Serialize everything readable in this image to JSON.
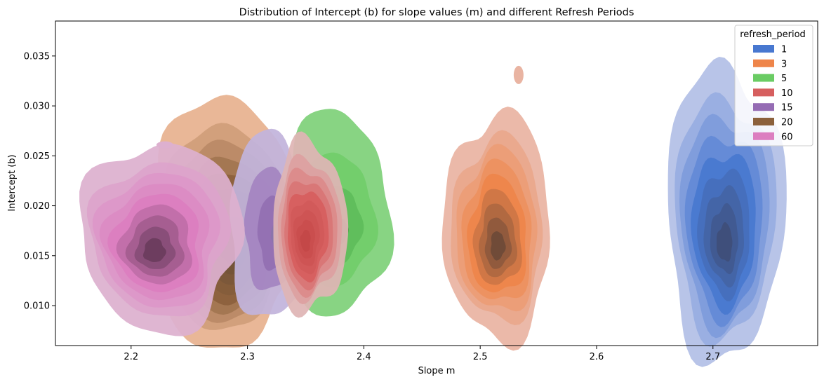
{
  "chart_data": {
    "type": "kde-2d-filled",
    "title": "Distribution of Intercept (b) for slope values (m) and different Refresh Periods",
    "xlabel": "Slope m",
    "ylabel": "Intercept (b)",
    "xlim": [
      2.135,
      2.79
    ],
    "ylim": [
      0.006,
      0.0385
    ],
    "xticks": [
      2.2,
      2.3,
      2.4,
      2.5,
      2.6,
      2.7
    ],
    "xtick_labels": [
      "2.2",
      "2.3",
      "2.4",
      "2.5",
      "2.6",
      "2.7"
    ],
    "yticks": [
      0.01,
      0.015,
      0.02,
      0.025,
      0.03,
      0.035
    ],
    "ytick_labels": [
      "0.010",
      "0.015",
      "0.020",
      "0.025",
      "0.030",
      "0.035"
    ],
    "legend": {
      "title": "refresh_period",
      "position": "top-right",
      "entries": [
        "1",
        "3",
        "5",
        "10",
        "15",
        "20",
        "60"
      ]
    },
    "series": [
      {
        "name": "1",
        "color": "#4878d0",
        "light": "#b3bfe6",
        "dark": "#3f4f7a",
        "peak": [
          2.71,
          0.0163
        ],
        "spread": [
          0.028,
          0.0036
        ],
        "levels": 9,
        "extent": {
          "x": [
            2.655,
            2.765
          ],
          "y": [
            0.01,
            0.0335
          ]
        }
      },
      {
        "name": "3",
        "color": "#ee854a",
        "light": "#e9b4a2",
        "dark": "#6e4a38",
        "peak": [
          2.515,
          0.016
        ],
        "spread": [
          0.03,
          0.0042
        ],
        "levels": 9,
        "extent": {
          "x": [
            2.465,
            2.565
          ],
          "y": [
            0.0093,
            0.0292
          ]
        }
      },
      {
        "name": "5",
        "color": "#6acc64",
        "light": "#7fd17a",
        "dark": "#4a9b45",
        "peak": [
          2.38,
          0.0175
        ],
        "spread": [
          0.03,
          0.004
        ],
        "levels": 4,
        "extent": {
          "x": [
            2.33,
            2.415
          ],
          "y": [
            0.0115,
            0.0295
          ]
        }
      },
      {
        "name": "10",
        "color": "#d65f5f",
        "light": "#dfb5b5",
        "dark": "#c44848",
        "peak": [
          2.35,
          0.0165
        ],
        "spread": [
          0.018,
          0.0035
        ],
        "levels": 9,
        "extent": {
          "x": [
            2.325,
            2.385
          ],
          "y": [
            0.0115,
            0.0265
          ]
        }
      },
      {
        "name": "15",
        "color": "#956cb4",
        "light": "#c2b4dc",
        "dark": "#8b74ab",
        "peak": [
          2.325,
          0.017
        ],
        "spread": [
          0.025,
          0.004
        ],
        "levels": 4,
        "extent": {
          "x": [
            2.285,
            2.35
          ],
          "y": [
            0.0098,
            0.0278
          ]
        }
      },
      {
        "name": "20",
        "color": "#8c613c",
        "light": "#e7b28f",
        "dark": "#6b4f37",
        "peak": [
          2.285,
          0.0158
        ],
        "spread": [
          0.03,
          0.0042
        ],
        "levels": 9,
        "extent": {
          "x": [
            2.215,
            2.345
          ],
          "y": [
            0.0098,
            0.0305
          ]
        }
      },
      {
        "name": "60",
        "color": "#dc7ec0",
        "light": "#ddb0cf",
        "dark": "#6b3c5e",
        "peak": [
          2.22,
          0.0155
        ],
        "spread": [
          0.03,
          0.0038
        ],
        "levels": 9,
        "extent": {
          "x": [
            2.163,
            2.295
          ],
          "y": [
            0.0098,
            0.0265
          ]
        }
      }
    ]
  }
}
